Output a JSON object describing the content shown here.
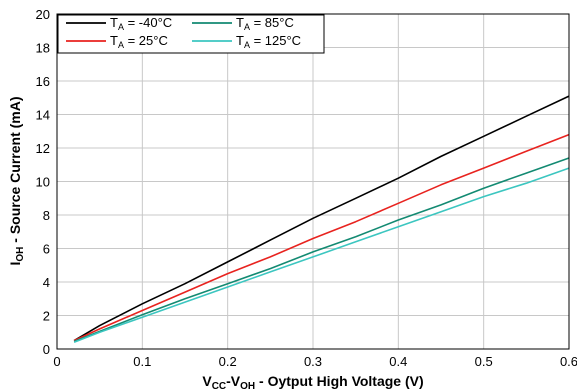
{
  "chart_data": {
    "type": "line",
    "xlabel": {
      "base1": "V",
      "sub1": "CC",
      "mid": "-V",
      "sub2": "OH",
      "rest": " - Oytput High Voltage (V)"
    },
    "ylabel": {
      "base": "I",
      "sub": "OH",
      "rest": " - Source Current (mA)"
    },
    "xlim": [
      0,
      0.6
    ],
    "ylim": [
      0,
      20
    ],
    "xticks": [
      0,
      0.1,
      0.2,
      0.3,
      0.4,
      0.5,
      0.6
    ],
    "xtick_labels": [
      "0",
      "0.1",
      "0.2",
      "0.3",
      "0.4",
      "0.5",
      "0.6"
    ],
    "yticks": [
      0,
      2,
      4,
      6,
      8,
      10,
      12,
      14,
      16,
      18,
      20
    ],
    "ytick_labels": [
      "0",
      "2",
      "4",
      "6",
      "8",
      "10",
      "12",
      "14",
      "16",
      "18",
      "20"
    ],
    "grid": true,
    "legend_position": "top-left",
    "series": [
      {
        "name": {
          "base": "T",
          "sub": "A",
          "rest": " = -40°C"
        },
        "color": "#000000",
        "x": [
          0.02,
          0.05,
          0.1,
          0.15,
          0.2,
          0.25,
          0.3,
          0.35,
          0.4,
          0.45,
          0.5,
          0.55,
          0.6
        ],
        "y": [
          0.5,
          1.4,
          2.7,
          3.9,
          5.2,
          6.5,
          7.8,
          9.0,
          10.2,
          11.5,
          12.7,
          13.9,
          15.1
        ]
      },
      {
        "name": {
          "base": "T",
          "sub": "A",
          "rest": " = 25°C"
        },
        "color": "#e8231f",
        "x": [
          0.02,
          0.05,
          0.1,
          0.15,
          0.2,
          0.25,
          0.3,
          0.35,
          0.4,
          0.45,
          0.5,
          0.55,
          0.6
        ],
        "y": [
          0.5,
          1.2,
          2.3,
          3.4,
          4.5,
          5.5,
          6.6,
          7.6,
          8.7,
          9.8,
          10.8,
          11.8,
          12.8
        ]
      },
      {
        "name": {
          "base": "T",
          "sub": "A",
          "rest": " = 85°C"
        },
        "color": "#138a72",
        "x": [
          0.02,
          0.05,
          0.1,
          0.15,
          0.2,
          0.25,
          0.3,
          0.35,
          0.4,
          0.45,
          0.5,
          0.55,
          0.6
        ],
        "y": [
          0.45,
          1.05,
          2.05,
          3.0,
          3.9,
          4.8,
          5.8,
          6.7,
          7.7,
          8.6,
          9.6,
          10.5,
          11.4
        ]
      },
      {
        "name": {
          "base": "T",
          "sub": "A",
          "rest": " = 125°C"
        },
        "color": "#3cc6c0",
        "x": [
          0.02,
          0.05,
          0.1,
          0.15,
          0.2,
          0.25,
          0.3,
          0.35,
          0.4,
          0.45,
          0.5,
          0.55,
          0.6
        ],
        "y": [
          0.4,
          1.0,
          1.9,
          2.8,
          3.7,
          4.6,
          5.5,
          6.4,
          7.3,
          8.2,
          9.1,
          9.9,
          10.8
        ]
      }
    ]
  }
}
